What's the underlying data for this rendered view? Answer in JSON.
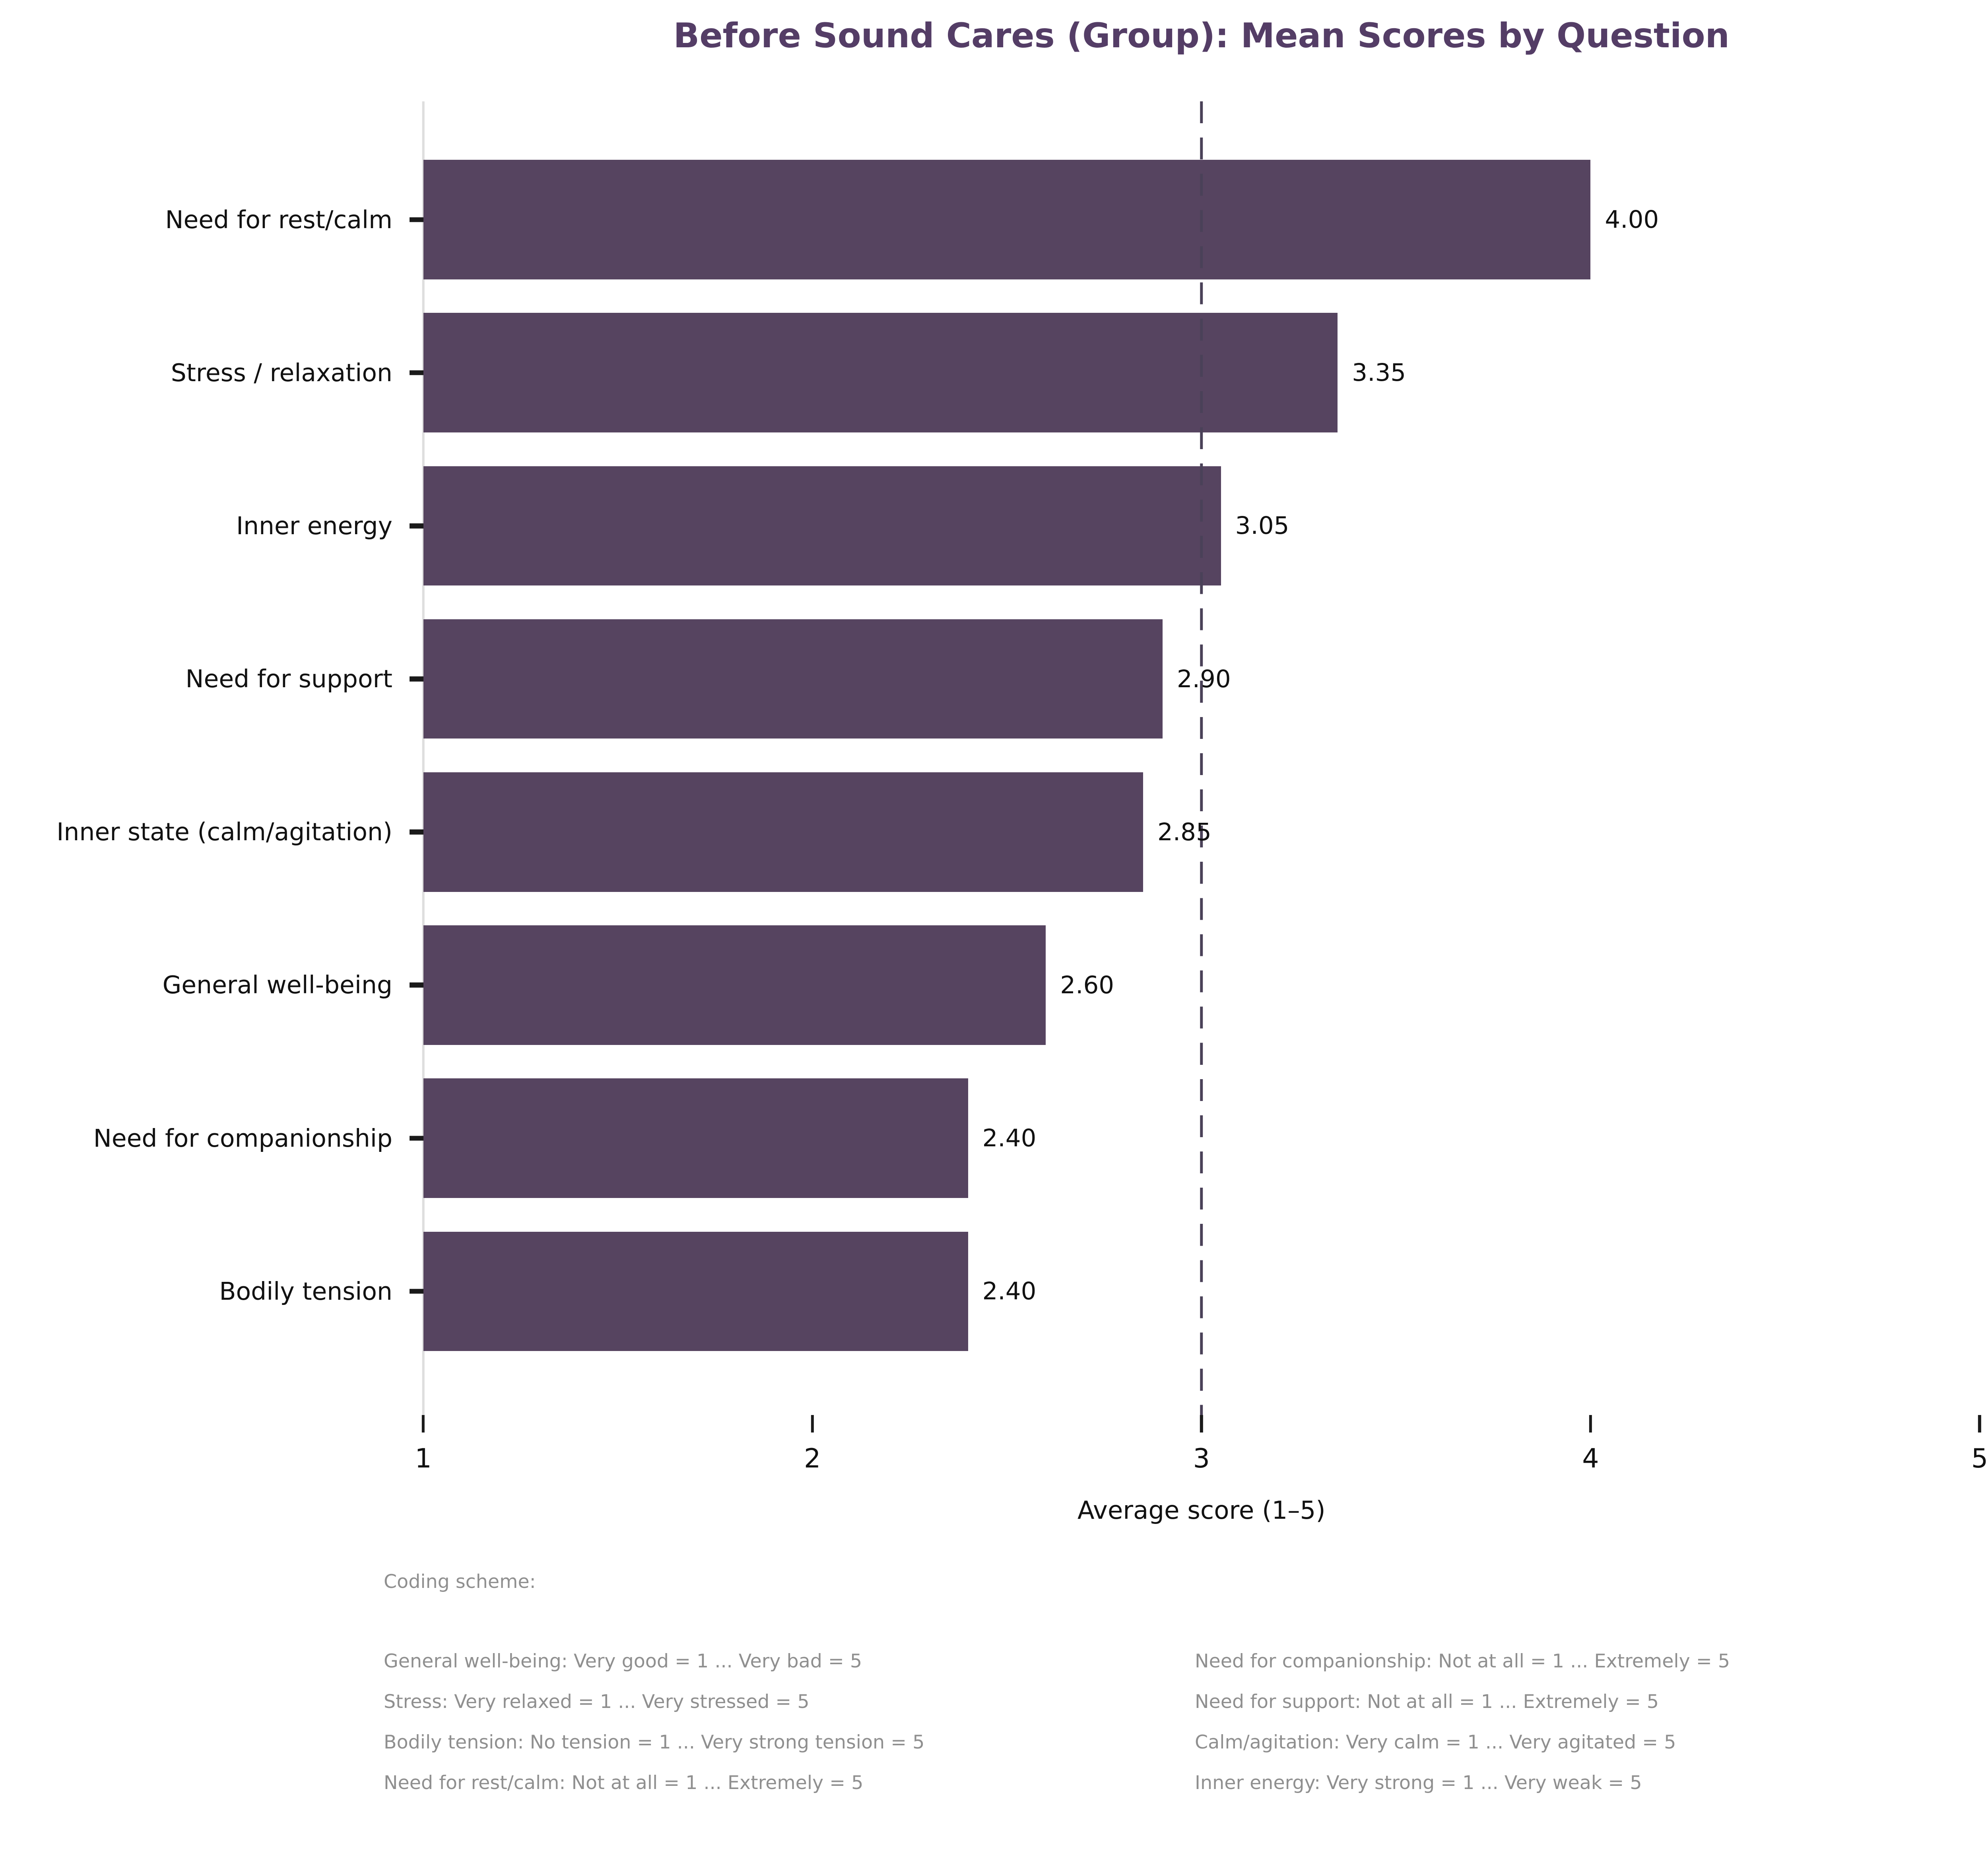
{
  "figure": {
    "colors": {
      "bar": "#564460",
      "title": "#543d66",
      "reference_line": "#4a4158",
      "spine": "#dedede",
      "tick": "#1a1a1a",
      "text": "#111111",
      "footer_text": "#8f8f8f",
      "background": "#ffffff"
    }
  },
  "chart_data": {
    "type": "bar",
    "orientation": "horizontal",
    "title": "Before Sound Cares (Group): Mean Scores by Question",
    "xlabel": "Average score (1–5)",
    "categories": [
      "Need for rest/calm",
      "Stress / relaxation",
      "Inner energy",
      "Need for support",
      "Inner state (calm/agitation)",
      "General well-being",
      "Need for companionship",
      "Bodily tension"
    ],
    "values": [
      4.0,
      3.35,
      3.05,
      2.9,
      2.85,
      2.6,
      2.4,
      2.4
    ],
    "value_labels": [
      "4.00",
      "3.35",
      "3.05",
      "2.90",
      "2.85",
      "2.60",
      "2.40",
      "2.40"
    ],
    "xticks": [
      "1",
      "2",
      "3",
      "4",
      "5"
    ],
    "xlim": [
      1,
      5
    ],
    "reference_line_x": 3,
    "grid": false,
    "legend": null
  },
  "footer": {
    "heading": "Coding scheme:",
    "left_lines": [
      "General well-being: Very good = 1 ... Very bad = 5",
      "Stress: Very relaxed = 1 ... Very stressed = 5",
      "Bodily tension: No tension = 1 ... Very strong tension = 5",
      "Need for rest/calm: Not at all = 1 ... Extremely = 5"
    ],
    "right_lines": [
      "Need for companionship: Not at all = 1 ... Extremely = 5",
      "Need for support: Not at all = 1 ... Extremely = 5",
      "Calm/agitation: Very calm = 1 ... Very agitated = 5",
      "Inner energy: Very strong = 1 ... Very weak = 5"
    ]
  }
}
